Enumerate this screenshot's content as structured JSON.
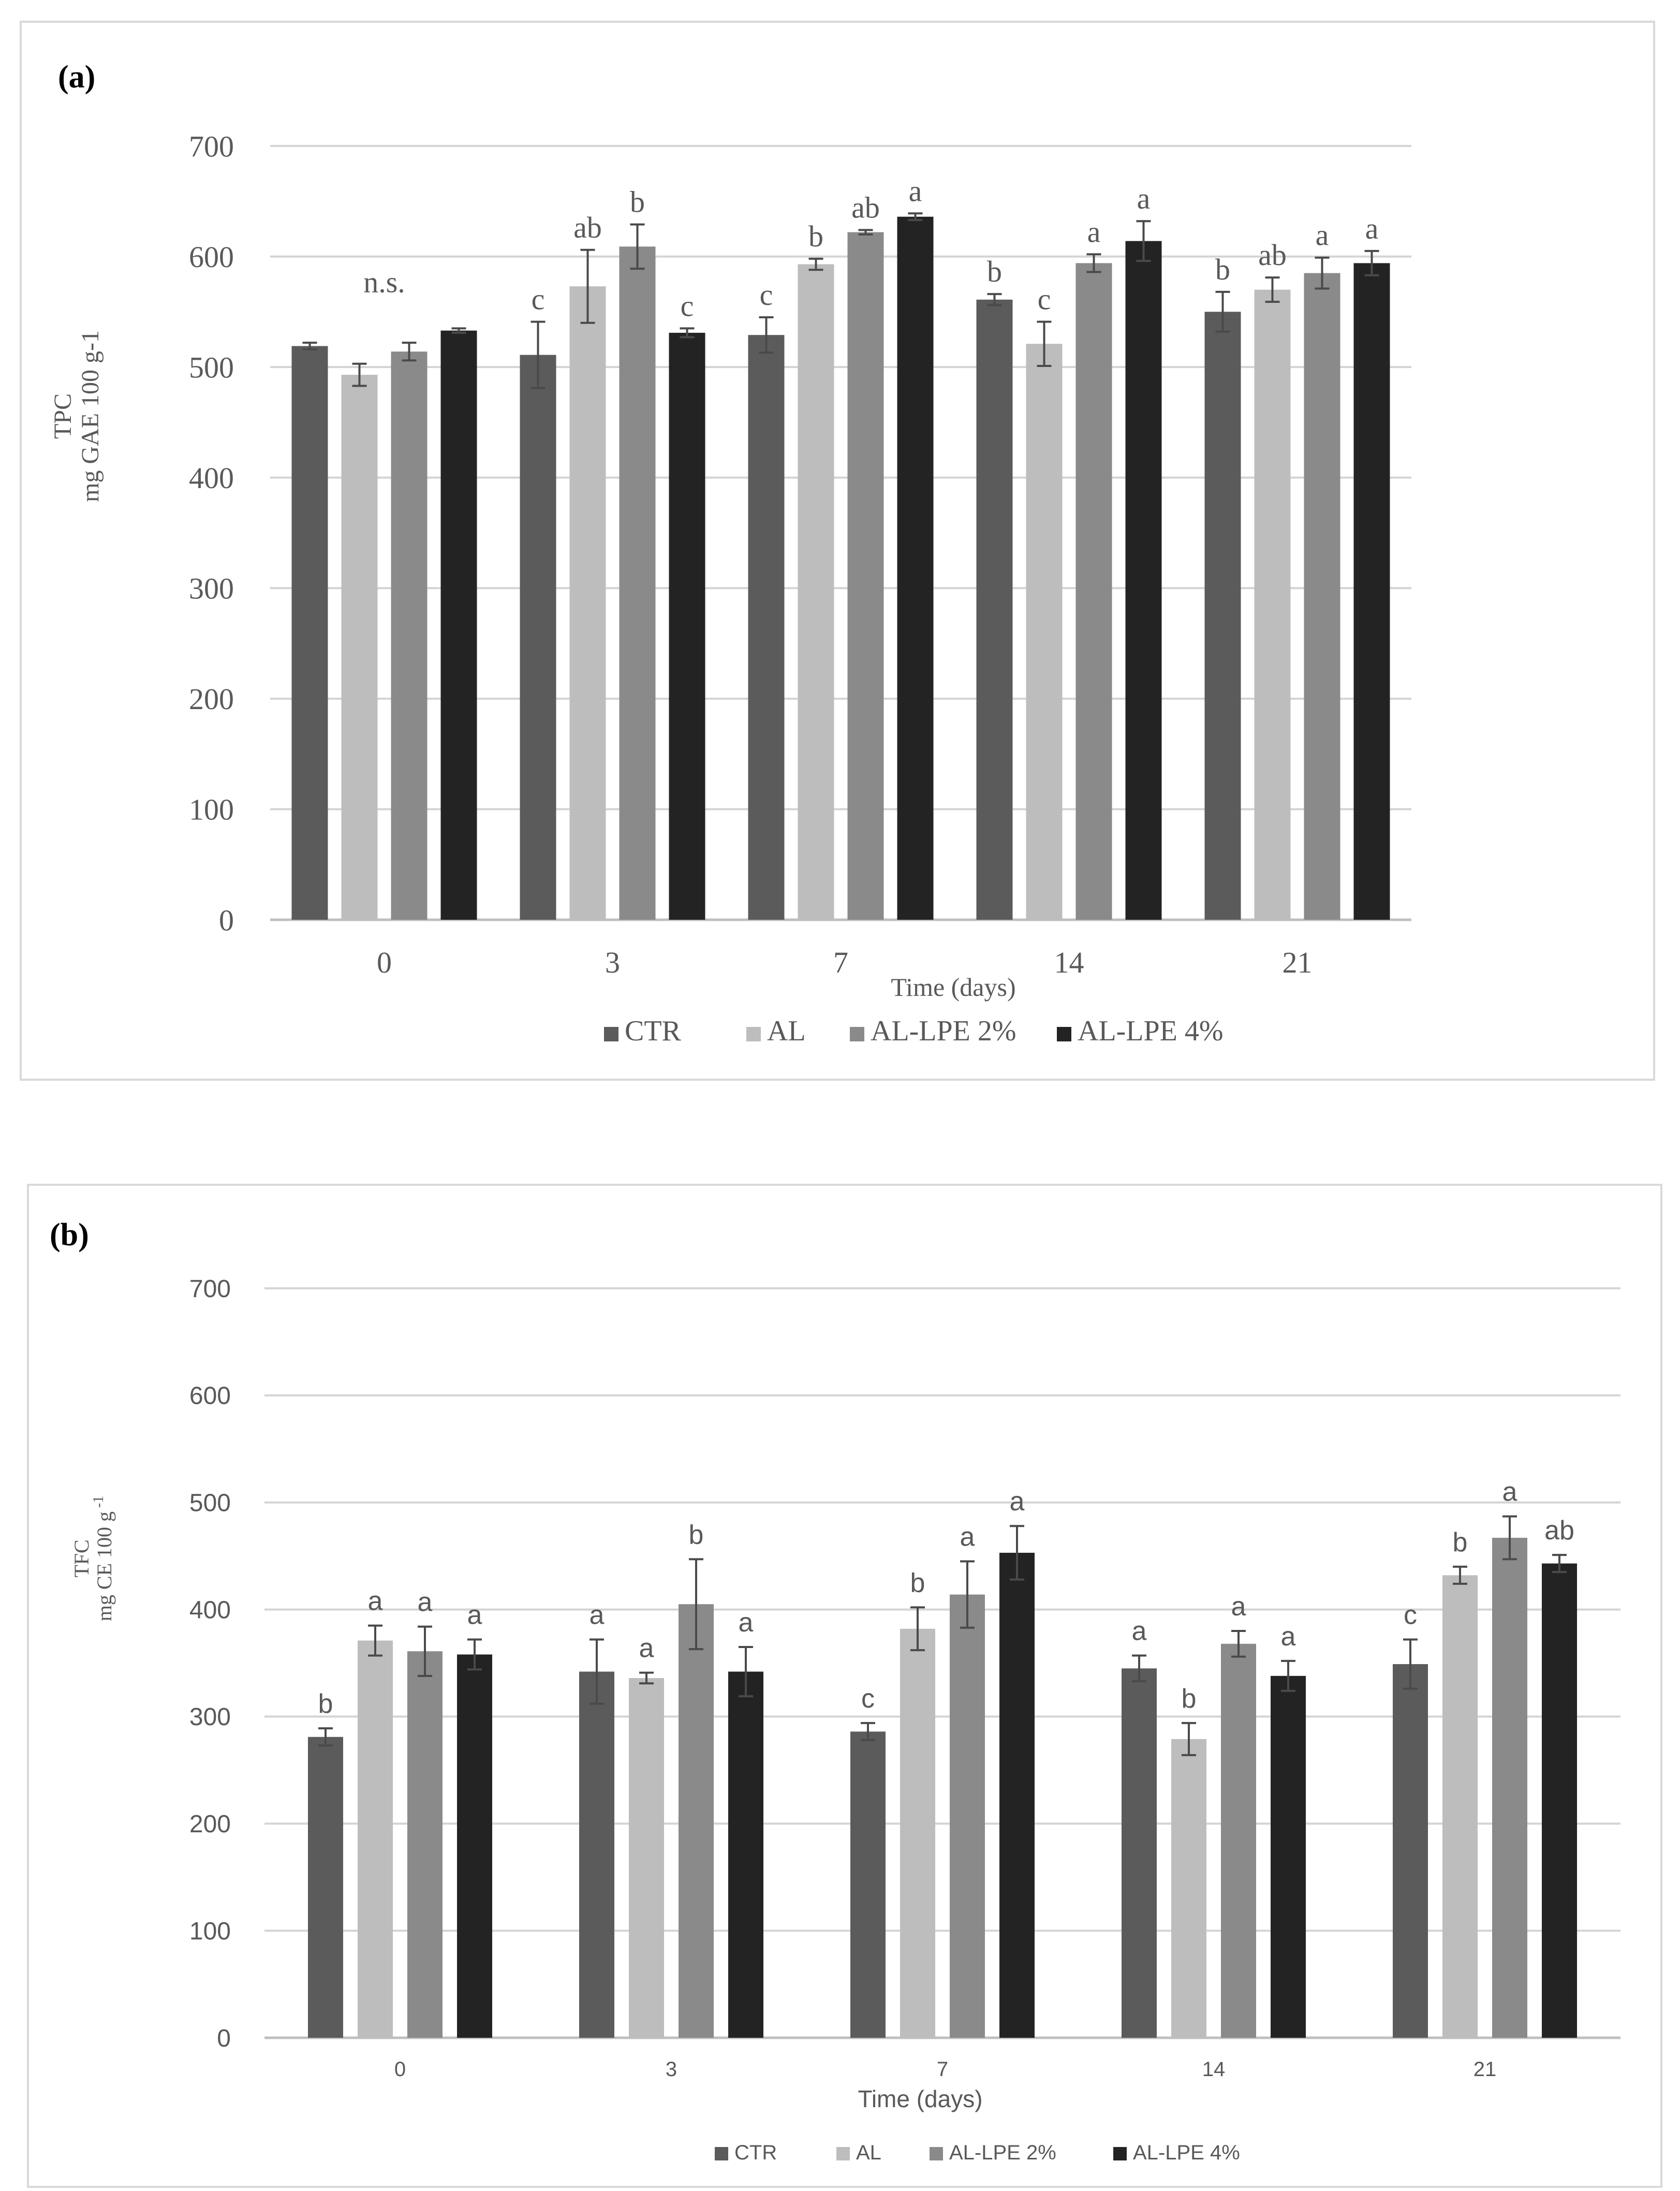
{
  "colors": {
    "CTR": "#5b5b5b",
    "AL": "#bdbdbd",
    "AL-LPE 2%": "#8a8a8a",
    "AL-LPE 4%": "#232323",
    "grid": "#d4d4d4",
    "axis": "#bfbfbf",
    "text": "#595959"
  },
  "chart_data": [
    {
      "type": "bar",
      "panel_label": "(a)",
      "ylabel_line1": "TPC",
      "ylabel_line2": "mg GAE 100 g-1",
      "xlabel": "Time (days)",
      "categories": [
        "0",
        "3",
        "7",
        "14",
        "21"
      ],
      "yticks": [
        "0",
        "100",
        "200",
        "300",
        "400",
        "500",
        "600",
        "700"
      ],
      "ylim": [
        0,
        700
      ],
      "legend_position": "bottom",
      "series": [
        {
          "name": "CTR",
          "values": [
            519,
            511,
            529,
            561,
            550
          ],
          "errors": [
            3,
            30,
            16,
            5,
            18
          ],
          "letters": [
            "",
            "c",
            "c",
            "b",
            "b"
          ]
        },
        {
          "name": "AL",
          "values": [
            493,
            573,
            593,
            521,
            570
          ],
          "errors": [
            10,
            33,
            5,
            20,
            11
          ],
          "letters": [
            "",
            "ab",
            "b",
            "c",
            "ab"
          ]
        },
        {
          "name": "AL-LPE 2%",
          "values": [
            514,
            609,
            622,
            594,
            585
          ],
          "errors": [
            8,
            20,
            2,
            8,
            14
          ],
          "letters": [
            "",
            "b",
            "ab",
            "a",
            "a"
          ]
        },
        {
          "name": "AL-LPE 4%",
          "values": [
            533,
            531,
            636,
            614,
            594
          ],
          "errors": [
            2,
            4,
            3,
            18,
            11
          ],
          "letters": [
            "",
            "c",
            "a",
            "a",
            "a"
          ]
        }
      ],
      "group_annotations": [
        "n.s.",
        "",
        "",
        "",
        ""
      ]
    },
    {
      "type": "bar",
      "panel_label": "(b)",
      "ylabel_line1": "TFC",
      "ylabel_line2": "mg CE 100 g",
      "ylabel_sup": "-1",
      "xlabel": "Time  (days)",
      "categories": [
        "0",
        "3",
        "7",
        "14",
        "21"
      ],
      "yticks": [
        "0",
        "100",
        "200",
        "300",
        "400",
        "500",
        "600",
        "700"
      ],
      "ylim": [
        0,
        700
      ],
      "legend_position": "bottom",
      "series": [
        {
          "name": "CTR",
          "values": [
            281,
            342,
            286,
            345,
            349
          ],
          "errors": [
            8,
            30,
            8,
            12,
            23
          ],
          "letters": [
            "b",
            "a",
            "c",
            "a",
            "c"
          ]
        },
        {
          "name": "AL",
          "values": [
            371,
            336,
            382,
            279,
            432
          ],
          "errors": [
            14,
            5,
            20,
            15,
            8
          ],
          "letters": [
            "a",
            "a",
            "b",
            "b",
            "b"
          ]
        },
        {
          "name": "AL-LPE 2%",
          "values": [
            361,
            405,
            414,
            368,
            467
          ],
          "errors": [
            23,
            42,
            31,
            12,
            20
          ],
          "letters": [
            "a",
            "b",
            "a",
            "a",
            "a"
          ]
        },
        {
          "name": "AL-LPE 4%",
          "values": [
            358,
            342,
            453,
            338,
            443
          ],
          "errors": [
            14,
            23,
            25,
            14,
            8
          ],
          "letters": [
            "a",
            "a",
            "a",
            "a",
            "ab"
          ]
        }
      ],
      "group_annotations": [
        "",
        "",
        "",
        "",
        ""
      ]
    }
  ]
}
